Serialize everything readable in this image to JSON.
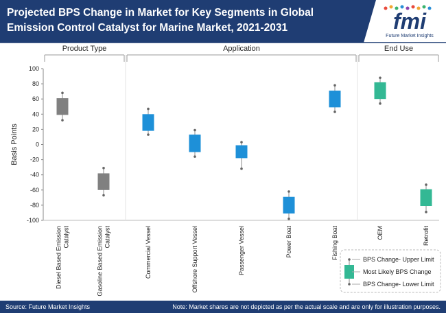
{
  "header": {
    "title": "Projected BPS Change in Market for Key Segments in Global Emission Control Catalyst for Marine Market, 2021-2031"
  },
  "logo": {
    "letters": "fmi",
    "tagline": "Future Market Insights"
  },
  "footer": {
    "source": "Source: Future Market Insights",
    "note": "Note: Market shares are not depicted as per the actual scale and are only for illustration purposes."
  },
  "colors": {
    "header_bg": "#1f3d73",
    "product_type": "#808080",
    "application": "#1e90d8",
    "end_use": "#33b894"
  },
  "chart_data": {
    "type": "boxplot",
    "ylabel": "Basis Points",
    "xlabel": "",
    "ylim": [
      -100,
      100
    ],
    "yticks": [
      100,
      80,
      60,
      40,
      20,
      0,
      -20,
      -40,
      -60,
      -80,
      -100
    ],
    "grid": false,
    "groups": [
      {
        "label": "Product Type",
        "color": "#808080",
        "categories": [
          "Diesel Based Emission Catalyst",
          "Gasoline Based Emission Catalyst"
        ]
      },
      {
        "label": "Application",
        "color": "#1e90d8",
        "categories": [
          "Commercial Vessel",
          "Offshore Support Vessel",
          "Passenger Vessel",
          "Power Boat",
          "Fishing Boat"
        ]
      },
      {
        "label": "End Use",
        "color": "#33b894",
        "categories": [
          "OEM",
          "Retrofit"
        ]
      }
    ],
    "categories": [
      {
        "label": [
          "Diesel Based Emission",
          "Catalyst"
        ],
        "upper": 68,
        "box_high": 61,
        "box_low": 39,
        "lower": 32,
        "color": "#808080"
      },
      {
        "label": [
          "Gasoline Based Emission",
          "Catalyst"
        ],
        "upper": -31,
        "box_high": -38,
        "box_low": -60,
        "lower": -67,
        "color": "#808080"
      },
      {
        "label": [
          "Commercial Vessel"
        ],
        "upper": 47,
        "box_high": 40,
        "box_low": 18,
        "lower": 13,
        "color": "#1e90d8"
      },
      {
        "label": [
          "Offshore Support Vessel"
        ],
        "upper": 19,
        "box_high": 13,
        "box_low": -10,
        "lower": -16,
        "color": "#1e90d8"
      },
      {
        "label": [
          "Passenger Vessel"
        ],
        "upper": 3,
        "box_high": -1,
        "box_low": -18,
        "lower": -32,
        "color": "#1e90d8"
      },
      {
        "label": [
          "Power Boat"
        ],
        "upper": -62,
        "box_high": -69,
        "box_low": -91,
        "lower": -98,
        "color": "#1e90d8"
      },
      {
        "label": [
          "Fishing Boat"
        ],
        "upper": 78,
        "box_high": 71,
        "box_low": 49,
        "lower": 43,
        "color": "#1e90d8"
      },
      {
        "label": [
          "OEM"
        ],
        "upper": 88,
        "box_high": 82,
        "box_low": 60,
        "lower": 54,
        "color": "#33b894"
      },
      {
        "label": [
          "Retrofit"
        ],
        "upper": -53,
        "box_high": -59,
        "box_low": -81,
        "lower": -89,
        "color": "#33b894"
      }
    ],
    "legend": {
      "position": "bottom-right",
      "items": [
        "BPS Change- Upper Limit",
        "Most Likely BPS Change",
        "BPS Change- Lower Limit"
      ]
    }
  }
}
